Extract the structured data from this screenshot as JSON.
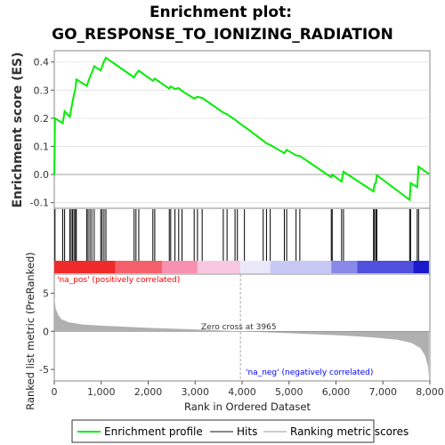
{
  "title_line1": "Enrichment plot:",
  "title_line2": "GO_RESPONSE_TO_IONIZING_RADIATION",
  "colors": {
    "enrichment_line": "#00ee00",
    "hits": "#000000",
    "metric_fill": "#b0b0b0",
    "zero_cross": "#aaaaaa",
    "pos_label": "#ff0000",
    "neg_label": "#0000ff"
  },
  "chart_data": [
    {
      "type": "line",
      "name": "enrichment-panel",
      "ylabel": "Enrichment score (ES)",
      "ylim": [
        -0.12,
        0.44
      ],
      "y_ticks": [
        -0.1,
        0.0,
        0.1,
        0.2,
        0.3,
        0.4
      ],
      "y_tick_labels": [
        "-0.1",
        "0.0",
        "0.1",
        "0.2",
        "0.3",
        "0.4"
      ],
      "xlim": [
        0,
        8000
      ],
      "grid": true,
      "points": [
        [
          0,
          0.0
        ],
        [
          15,
          0.2
        ],
        [
          180,
          0.182
        ],
        [
          220,
          0.225
        ],
        [
          330,
          0.205
        ],
        [
          360,
          0.232
        ],
        [
          390,
          0.26
        ],
        [
          420,
          0.285
        ],
        [
          450,
          0.305
        ],
        [
          470,
          0.338
        ],
        [
          690,
          0.315
        ],
        [
          720,
          0.328
        ],
        [
          760,
          0.347
        ],
        [
          800,
          0.362
        ],
        [
          850,
          0.385
        ],
        [
          990,
          0.37
        ],
        [
          1020,
          0.385
        ],
        [
          1060,
          0.402
        ],
        [
          1100,
          0.415
        ],
        [
          1700,
          0.345
        ],
        [
          1740,
          0.358
        ],
        [
          1800,
          0.369
        ],
        [
          2100,
          0.333
        ],
        [
          2140,
          0.341
        ],
        [
          2450,
          0.305
        ],
        [
          2480,
          0.313
        ],
        [
          2570,
          0.304
        ],
        [
          2650,
          0.307
        ],
        [
          2720,
          0.297
        ],
        [
          2980,
          0.27
        ],
        [
          3050,
          0.276
        ],
        [
          3150,
          0.272
        ],
        [
          3600,
          0.22
        ],
        [
          3680,
          0.214
        ],
        [
          3850,
          0.195
        ],
        [
          3900,
          0.188
        ],
        [
          4050,
          0.17
        ],
        [
          4450,
          0.12
        ],
        [
          4520,
          0.111
        ],
        [
          4600,
          0.105
        ],
        [
          4900,
          0.076
        ],
        [
          4950,
          0.088
        ],
        [
          5150,
          0.068
        ],
        [
          5230,
          0.066
        ],
        [
          5900,
          -0.01
        ],
        [
          5920,
          0.0
        ],
        [
          6120,
          -0.025
        ],
        [
          6160,
          0.01
        ],
        [
          6800,
          -0.06
        ],
        [
          6820,
          -0.035
        ],
        [
          6850,
          -0.03
        ],
        [
          6870,
          -0.003
        ],
        [
          7570,
          -0.09
        ],
        [
          7590,
          -0.03
        ],
        [
          7730,
          -0.045
        ],
        [
          7760,
          0.028
        ],
        [
          7980,
          0.002
        ]
      ],
      "legend_label": "Enrichment profile"
    },
    {
      "type": "scatter",
      "name": "hits-panel",
      "hit_positions": [
        15,
        180,
        220,
        330,
        360,
        390,
        420,
        450,
        470,
        690,
        720,
        760,
        800,
        850,
        990,
        1020,
        1060,
        1100,
        1700,
        1740,
        1800,
        2100,
        2140,
        2450,
        2480,
        2570,
        2650,
        2720,
        2980,
        3050,
        3150,
        3600,
        3680,
        3850,
        3900,
        4050,
        4450,
        4520,
        4600,
        4900,
        4950,
        5150,
        5230,
        5900,
        5920,
        6120,
        6160,
        6800,
        6820,
        6850,
        6870,
        7570,
        7590,
        7730,
        7760
      ],
      "legend_label": "Hits"
    },
    {
      "type": "heatmap",
      "name": "rank-color-bar",
      "segments": [
        {
          "from": 0,
          "to": 1300,
          "color": "#ee2a2a"
        },
        {
          "from": 1300,
          "to": 2300,
          "color": "#f4606a"
        },
        {
          "from": 2300,
          "to": 3050,
          "color": "#f890b0"
        },
        {
          "from": 3050,
          "to": 3965,
          "color": "#f8c8e0"
        },
        {
          "from": 3965,
          "to": 4600,
          "color": "#e8e8f8"
        },
        {
          "from": 4600,
          "to": 5900,
          "color": "#c8c8f4"
        },
        {
          "from": 5900,
          "to": 6450,
          "color": "#8888e8"
        },
        {
          "from": 6450,
          "to": 7650,
          "color": "#5050dd"
        },
        {
          "from": 7650,
          "to": 7980,
          "color": "#1a1acc"
        }
      ],
      "pos_label": "'na_pos' (positively correlated)",
      "neg_label": "'na_neg' (negatively correlated)"
    },
    {
      "type": "area",
      "name": "ranked-metric-panel",
      "ylabel": "Ranked list metric (PreRanked)",
      "xlabel": "Rank in Ordered Dataset",
      "ylim": [
        -6.5,
        7.5
      ],
      "y_ticks": [
        -5,
        0,
        5
      ],
      "y_tick_labels": [
        "-5",
        "0",
        "5"
      ],
      "xlim": [
        0,
        8000
      ],
      "x_ticks": [
        0,
        1000,
        2000,
        3000,
        4000,
        5000,
        6000,
        7000,
        8000
      ],
      "x_tick_labels": [
        "0",
        "1,000",
        "2,000",
        "3,000",
        "4,000",
        "5,000",
        "6,000",
        "7,000",
        "8,000"
      ],
      "points": [
        [
          0,
          4.5
        ],
        [
          30,
          3.0
        ],
        [
          80,
          2.2
        ],
        [
          150,
          1.6
        ],
        [
          300,
          1.2
        ],
        [
          600,
          0.9
        ],
        [
          1000,
          0.75
        ],
        [
          2000,
          0.45
        ],
        [
          3000,
          0.25
        ],
        [
          3965,
          0.0
        ],
        [
          5000,
          -0.25
        ],
        [
          6000,
          -0.5
        ],
        [
          6800,
          -0.8
        ],
        [
          7300,
          -1.1
        ],
        [
          7600,
          -1.5
        ],
        [
          7800,
          -2.2
        ],
        [
          7900,
          -3.2
        ],
        [
          7960,
          -4.6
        ],
        [
          7980,
          -6.0
        ]
      ],
      "zero_cross_label": "Zero cross at 3965",
      "zero_cross": 3965,
      "legend_label": "Ranking metric scores"
    }
  ]
}
